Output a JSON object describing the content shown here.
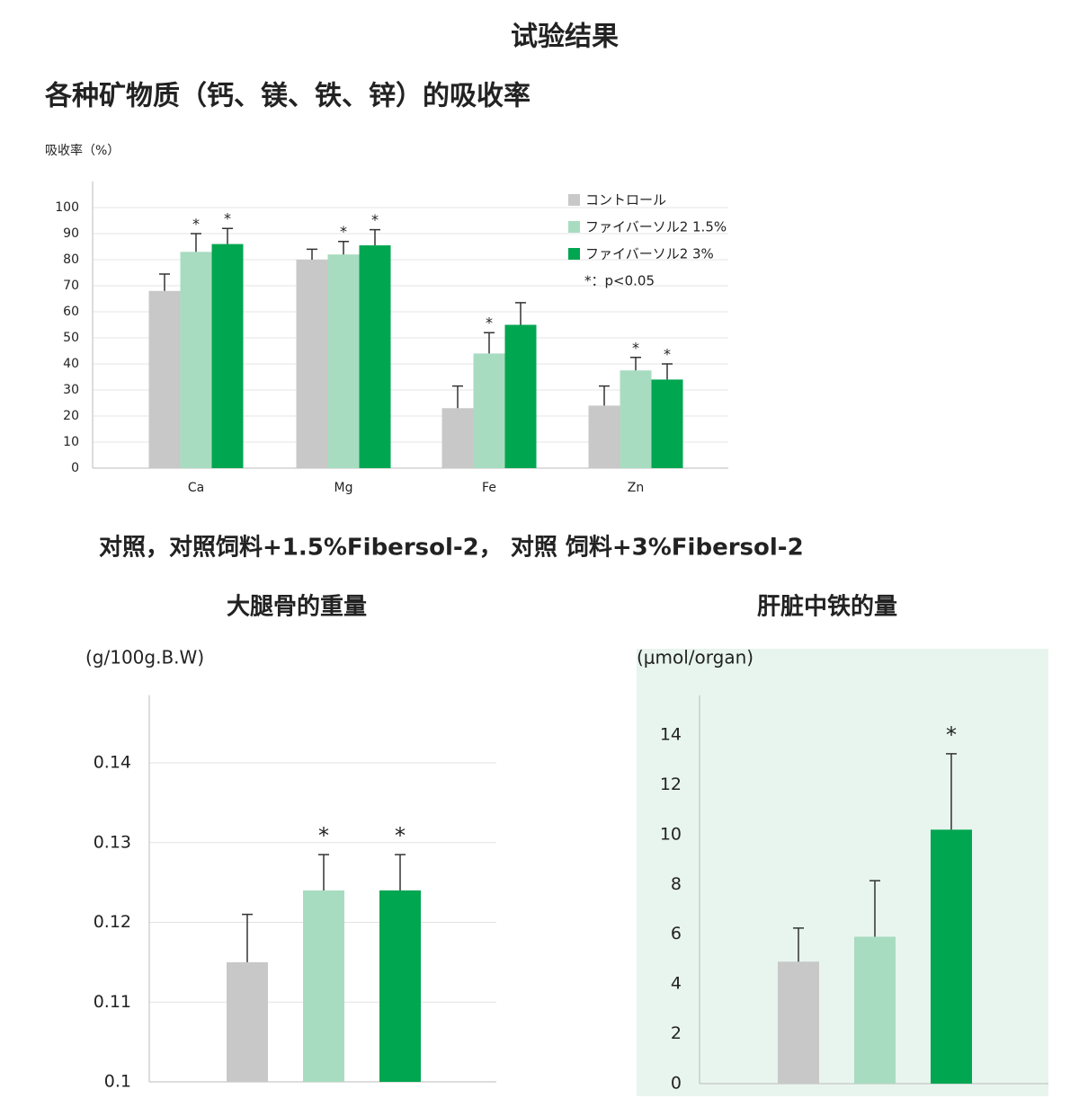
{
  "title": "试验结果",
  "section_title": "各种矿物质（钙、镁、铁、锌）的吸收率",
  "caption": "对照，对照饲料+1.5%Fibersol-2， 对照 饲料+3%Fibersol-2",
  "chart_data": [
    {
      "type": "grouped_bar",
      "y_label": "吸收率（%）",
      "categories": [
        "Ca",
        "Mg",
        "Fe",
        "Zn"
      ],
      "ylim": [
        0,
        110
      ],
      "yticks": [
        0,
        10,
        20,
        30,
        40,
        50,
        60,
        70,
        80,
        90,
        100
      ],
      "grid": true,
      "legend": "top-right",
      "note": "*：p<0.05",
      "series": [
        {
          "name": "コントロール",
          "color": "#c8c8c8",
          "values": [
            68,
            80,
            23,
            24
          ],
          "errors": [
            6.5,
            4,
            8.5,
            7.5
          ]
        },
        {
          "name": "ファイバーソル2 1.5%",
          "color": "#a8dcc0",
          "values": [
            83,
            82,
            44,
            37.5
          ],
          "errors": [
            7,
            5,
            8,
            5
          ],
          "annotations": [
            "*",
            "*",
            "*",
            "*"
          ]
        },
        {
          "name": "ファイバーソル2 3%",
          "color": "#00a650",
          "values": [
            86,
            85.5,
            55,
            34
          ],
          "errors": [
            6,
            6,
            8.5,
            6
          ],
          "annotations": [
            "*",
            "*",
            null,
            "*"
          ]
        }
      ]
    },
    {
      "type": "bar",
      "title": "大腿骨的重量",
      "y_label": "(g/100g.B.W)",
      "categories": [
        null,
        null,
        null
      ],
      "values": [
        0.115,
        0.124,
        0.124
      ],
      "errors": [
        0.006,
        0.0045,
        0.0045
      ],
      "colors": [
        "#c8c8c8",
        "#a8dcc0",
        "#00a650"
      ],
      "annotations": [
        null,
        "*",
        "*"
      ],
      "ylim": [
        0.1,
        0.1485
      ],
      "yticks": [
        0.1,
        0.11,
        0.12,
        0.13,
        0.14
      ],
      "grid": true
    },
    {
      "type": "bar",
      "title": "肝脏中铁的量",
      "y_label": "(μmol/organ)",
      "categories": [
        null,
        null,
        null
      ],
      "values": [
        4.9,
        5.9,
        10.2
      ],
      "errors": [
        1.35,
        2.25,
        3.05
      ],
      "colors": [
        "#c8c8c8",
        "#a8dcc0",
        "#00a650"
      ],
      "annotations": [
        null,
        null,
        "*"
      ],
      "ylim": [
        0,
        15.6
      ],
      "yticks": [
        0,
        2,
        4,
        6,
        8,
        10,
        12,
        14
      ],
      "grid": false,
      "background": "#e8f5ee"
    }
  ]
}
